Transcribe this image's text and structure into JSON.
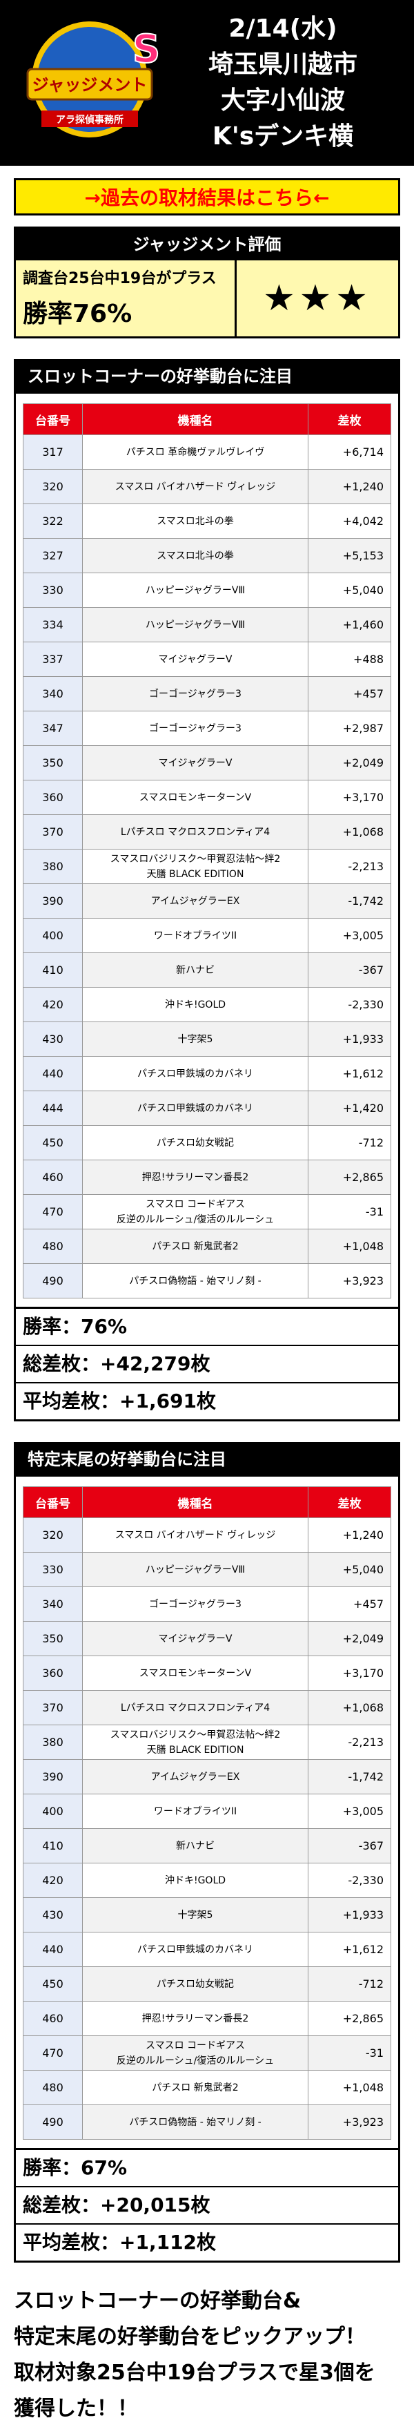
{
  "header": {
    "logo_title": "ジャッジメント",
    "logo_sub": "アラ探偵事務所",
    "date": "2/14(水)",
    "location_line1": "埼玉県川越市",
    "location_line2": "大字小仙波",
    "store": "K'sデンキ横"
  },
  "link_text": "→過去の取材結果はこちら←",
  "judge": {
    "title": "ジャッジメント評価",
    "sub": "調査台25台中19台がプラス",
    "rate": "勝率76%",
    "stars": "★★★"
  },
  "table_headers": {
    "number": "台番号",
    "model": "機種名",
    "diff": "差枚"
  },
  "section1": {
    "title": "スロットコーナーの好挙動台に注目",
    "rows": [
      {
        "num": "317",
        "model": "パチスロ 革命機ヴァルヴレイヴ",
        "model2": "",
        "diff": "+6,714"
      },
      {
        "num": "320",
        "model": "スマスロ バイオハザード ヴィレッジ",
        "model2": "",
        "diff": "+1,240"
      },
      {
        "num": "322",
        "model": "スマスロ北斗の拳",
        "model2": "",
        "diff": "+4,042"
      },
      {
        "num": "327",
        "model": "スマスロ北斗の拳",
        "model2": "",
        "diff": "+5,153"
      },
      {
        "num": "330",
        "model": "ハッピージャグラーVⅢ",
        "model2": "",
        "diff": "+5,040"
      },
      {
        "num": "334",
        "model": "ハッピージャグラーVⅢ",
        "model2": "",
        "diff": "+1,460"
      },
      {
        "num": "337",
        "model": "マイジャグラーV",
        "model2": "",
        "diff": "+488"
      },
      {
        "num": "340",
        "model": "ゴーゴージャグラー3",
        "model2": "",
        "diff": "+457"
      },
      {
        "num": "347",
        "model": "ゴーゴージャグラー3",
        "model2": "",
        "diff": "+2,987"
      },
      {
        "num": "350",
        "model": "マイジャグラーV",
        "model2": "",
        "diff": "+2,049"
      },
      {
        "num": "360",
        "model": "スマスロモンキーターンV",
        "model2": "",
        "diff": "+3,170"
      },
      {
        "num": "370",
        "model": "Lパチスロ マクロスフロンティア4",
        "model2": "",
        "diff": "+1,068"
      },
      {
        "num": "380",
        "model": "スマスロバジリスク～甲賀忍法帖～絆2",
        "model2": "天膳 BLACK EDITION",
        "diff": "-2,213"
      },
      {
        "num": "390",
        "model": "アイムジャグラーEX",
        "model2": "",
        "diff": "-1,742"
      },
      {
        "num": "400",
        "model": "ワードオブライツII",
        "model2": "",
        "diff": "+3,005"
      },
      {
        "num": "410",
        "model": "新ハナビ",
        "model2": "",
        "diff": "-367"
      },
      {
        "num": "420",
        "model": "沖ドキ!GOLD",
        "model2": "",
        "diff": "-2,330"
      },
      {
        "num": "430",
        "model": "十字架5",
        "model2": "",
        "diff": "+1,933"
      },
      {
        "num": "440",
        "model": "パチスロ甲鉄城のカバネリ",
        "model2": "",
        "diff": "+1,612"
      },
      {
        "num": "444",
        "model": "パチスロ甲鉄城のカバネリ",
        "model2": "",
        "diff": "+1,420"
      },
      {
        "num": "450",
        "model": "パチスロ幼女戦記",
        "model2": "",
        "diff": "-712"
      },
      {
        "num": "460",
        "model": "押忍!サラリーマン番長2",
        "model2": "",
        "diff": "+2,865"
      },
      {
        "num": "470",
        "model": "スマスロ コードギアス",
        "model2": "反逆のルルーシュ/復活のルルーシュ",
        "diff": "-31"
      },
      {
        "num": "480",
        "model": "パチスロ 新鬼武者2",
        "model2": "",
        "diff": "+1,048"
      },
      {
        "num": "490",
        "model": "パチスロ偽物語 - 始マリノ刻 -",
        "model2": "",
        "diff": "+3,923"
      }
    ],
    "stats": [
      "勝率：76%",
      "総差枚：+42,279枚",
      "平均差枚：+1,691枚"
    ]
  },
  "section2": {
    "title": "特定末尾の好挙動台に注目",
    "rows": [
      {
        "num": "320",
        "model": "スマスロ バイオハザード ヴィレッジ",
        "model2": "",
        "diff": "+1,240"
      },
      {
        "num": "330",
        "model": "ハッピージャグラーVⅢ",
        "model2": "",
        "diff": "+5,040"
      },
      {
        "num": "340",
        "model": "ゴーゴージャグラー3",
        "model2": "",
        "diff": "+457"
      },
      {
        "num": "350",
        "model": "マイジャグラーV",
        "model2": "",
        "diff": "+2,049"
      },
      {
        "num": "360",
        "model": "スマスロモンキーターンV",
        "model2": "",
        "diff": "+3,170"
      },
      {
        "num": "370",
        "model": "Lパチスロ マクロスフロンティア4",
        "model2": "",
        "diff": "+1,068"
      },
      {
        "num": "380",
        "model": "スマスロバジリスク～甲賀忍法帖～絆2",
        "model2": "天膳 BLACK EDITION",
        "diff": "-2,213"
      },
      {
        "num": "390",
        "model": "アイムジャグラーEX",
        "model2": "",
        "diff": "-1,742"
      },
      {
        "num": "400",
        "model": "ワードオブライツII",
        "model2": "",
        "diff": "+3,005"
      },
      {
        "num": "410",
        "model": "新ハナビ",
        "model2": "",
        "diff": "-367"
      },
      {
        "num": "420",
        "model": "沖ドキ!GOLD",
        "model2": "",
        "diff": "-2,330"
      },
      {
        "num": "430",
        "model": "十字架5",
        "model2": "",
        "diff": "+1,933"
      },
      {
        "num": "440",
        "model": "パチスロ甲鉄城のカバネリ",
        "model2": "",
        "diff": "+1,612"
      },
      {
        "num": "450",
        "model": "パチスロ幼女戦記",
        "model2": "",
        "diff": "-712"
      },
      {
        "num": "460",
        "model": "押忍!サラリーマン番長2",
        "model2": "",
        "diff": "+2,865"
      },
      {
        "num": "470",
        "model": "スマスロ コードギアス",
        "model2": "反逆のルルーシュ/復活のルルーシュ",
        "diff": "-31"
      },
      {
        "num": "480",
        "model": "パチスロ 新鬼武者2",
        "model2": "",
        "diff": "+1,048"
      },
      {
        "num": "490",
        "model": "パチスロ偽物語 - 始マリノ刻 -",
        "model2": "",
        "diff": "+3,923"
      }
    ],
    "stats": [
      "勝率：67%",
      "総差枚：+20,015枚",
      "平均差枚：+1,112枚"
    ]
  },
  "summary": [
    "スロットコーナーの好挙動台&",
    "特定末尾の好挙動台をピックアップ！",
    "取材対象25台中19台プラスで星3個を",
    "獲得した！！"
  ],
  "colors": {
    "header_bg": "#000000",
    "table_head": "#e60012",
    "link_bg": "#ffea00",
    "link_text": "#ff0000",
    "number_cell": "#e6ecf8"
  }
}
